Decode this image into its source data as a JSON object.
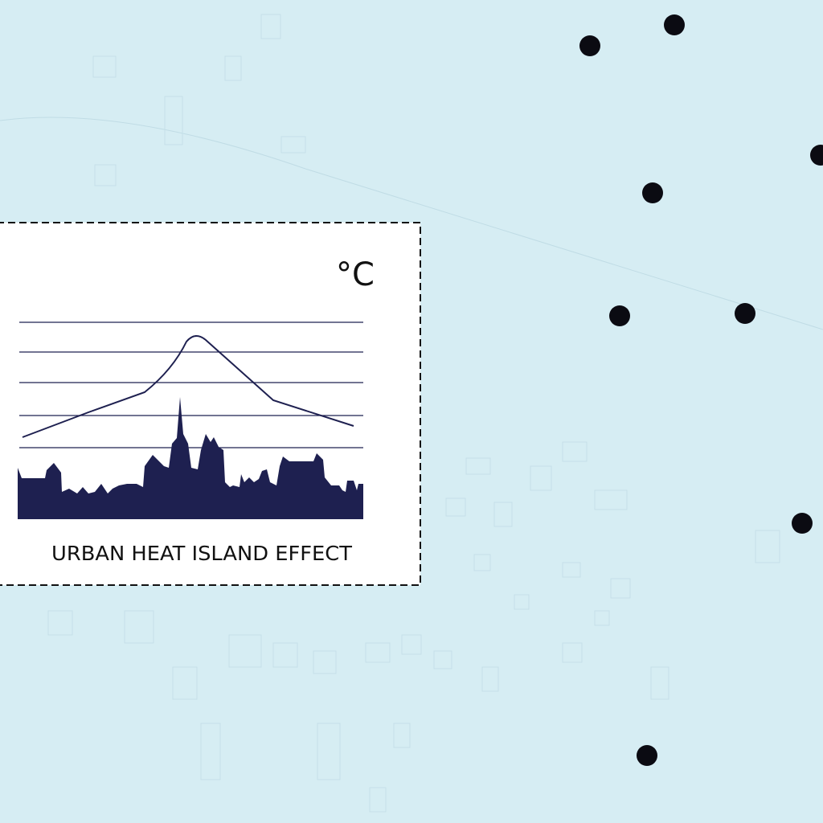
{
  "inset": {
    "unit": "°C",
    "caption": "URBAN HEAT ISLAND EFFECT"
  }
}
